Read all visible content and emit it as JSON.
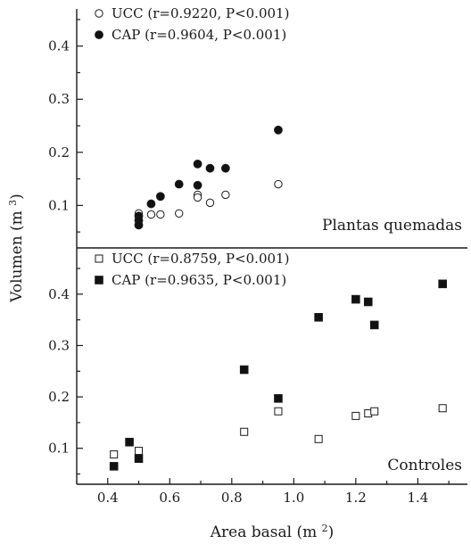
{
  "chart_data": [
    {
      "type": "scatter",
      "panel_title": "Plantas quemadas",
      "ylim": [
        0.02,
        0.47
      ],
      "yticks": [
        0.1,
        0.2,
        0.3,
        0.4
      ],
      "series": [
        {
          "name": "UCC (r=0.9220, P<0.001)",
          "marker": "open-circle",
          "points": [
            [
              0.5,
              0.085
            ],
            [
              0.54,
              0.083
            ],
            [
              0.57,
              0.083
            ],
            [
              0.63,
              0.085
            ],
            [
              0.69,
              0.12
            ],
            [
              0.69,
              0.115
            ],
            [
              0.73,
              0.105
            ],
            [
              0.78,
              0.12
            ],
            [
              0.95,
              0.14
            ]
          ]
        },
        {
          "name": "CAP (r=0.9604, P<0.001)",
          "marker": "filled-circle",
          "points": [
            [
              0.5,
              0.08
            ],
            [
              0.5,
              0.072
            ],
            [
              0.5,
              0.063
            ],
            [
              0.54,
              0.103
            ],
            [
              0.57,
              0.117
            ],
            [
              0.63,
              0.14
            ],
            [
              0.69,
              0.138
            ],
            [
              0.69,
              0.178
            ],
            [
              0.73,
              0.17
            ],
            [
              0.78,
              0.17
            ],
            [
              0.95,
              0.242
            ]
          ]
        }
      ]
    },
    {
      "type": "scatter",
      "panel_title": "Controles",
      "ylim": [
        0.03,
        0.49
      ],
      "yticks": [
        0.1,
        0.2,
        0.3,
        0.4
      ],
      "series": [
        {
          "name": "UCC (r=0.8759, P<0.001)",
          "marker": "open-square",
          "points": [
            [
              0.42,
              0.088
            ],
            [
              0.5,
              0.095
            ],
            [
              0.84,
              0.132
            ],
            [
              0.95,
              0.172
            ],
            [
              1.08,
              0.118
            ],
            [
              1.2,
              0.163
            ],
            [
              1.24,
              0.168
            ],
            [
              1.26,
              0.172
            ],
            [
              1.48,
              0.178
            ]
          ]
        },
        {
          "name": "CAP (r=0.9635, P<0.001)",
          "marker": "filled-square",
          "points": [
            [
              0.42,
              0.065
            ],
            [
              0.47,
              0.112
            ],
            [
              0.5,
              0.08
            ],
            [
              0.84,
              0.253
            ],
            [
              0.95,
              0.197
            ],
            [
              1.08,
              0.355
            ],
            [
              1.2,
              0.39
            ],
            [
              1.24,
              0.385
            ],
            [
              1.26,
              0.34
            ],
            [
              1.48,
              0.42
            ]
          ]
        }
      ]
    }
  ],
  "xaxis": {
    "label": "Area basal (m",
    "label_sup": "2",
    "label_end": ")",
    "xlim": [
      0.3,
      1.56
    ],
    "ticks": [
      0.4,
      0.6,
      0.8,
      1.0,
      1.2,
      1.4
    ]
  },
  "yaxis": {
    "label": "Volumen (m",
    "label_sup": "3",
    "label_end": ")"
  }
}
